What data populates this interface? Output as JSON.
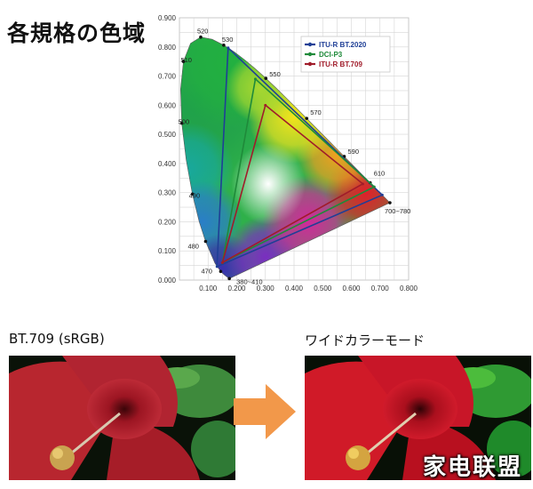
{
  "page": {
    "title": "各規格の色域",
    "left_caption": "BT.709 (sRGB)",
    "right_caption": "ワイドカラーモード",
    "watermark": "家电联盟"
  },
  "chart_data": {
    "type": "scatter",
    "title": "",
    "xlabel": "",
    "ylabel": "",
    "xlim": [
      0.0,
      0.8
    ],
    "ylim": [
      0.0,
      0.9
    ],
    "x_ticks": [
      "0.100",
      "0.200",
      "0.300",
      "0.400",
      "0.500",
      "0.600",
      "0.700",
      "0.800"
    ],
    "y_ticks": [
      "0.000",
      "0.100",
      "0.200",
      "0.300",
      "0.400",
      "0.500",
      "0.600",
      "0.700",
      "0.800",
      "0.900"
    ],
    "grid": true,
    "legend_position": "top-right",
    "spectral_locus": [
      {
        "x": 0.1741,
        "y": 0.005,
        "label": "380~410"
      },
      {
        "x": 0.1566,
        "y": 0.0177
      },
      {
        "x": 0.144,
        "y": 0.0297,
        "label": "470"
      },
      {
        "x": 0.1241,
        "y": 0.0578
      },
      {
        "x": 0.0913,
        "y": 0.1327,
        "label": "480"
      },
      {
        "x": 0.0687,
        "y": 0.2007
      },
      {
        "x": 0.0454,
        "y": 0.295,
        "label": "490"
      },
      {
        "x": 0.0235,
        "y": 0.4127
      },
      {
        "x": 0.0082,
        "y": 0.5384,
        "label": "500"
      },
      {
        "x": 0.0039,
        "y": 0.6548
      },
      {
        "x": 0.0139,
        "y": 0.7502,
        "label": "510"
      },
      {
        "x": 0.0389,
        "y": 0.812
      },
      {
        "x": 0.0743,
        "y": 0.8338,
        "label": "520"
      },
      {
        "x": 0.1142,
        "y": 0.8262
      },
      {
        "x": 0.1547,
        "y": 0.8059,
        "label": "530"
      },
      {
        "x": 0.1929,
        "y": 0.7816
      },
      {
        "x": 0.2296,
        "y": 0.7543
      },
      {
        "x": 0.2658,
        "y": 0.7243
      },
      {
        "x": 0.3016,
        "y": 0.6923,
        "label": "550"
      },
      {
        "x": 0.3373,
        "y": 0.6589
      },
      {
        "x": 0.3731,
        "y": 0.6245
      },
      {
        "x": 0.4087,
        "y": 0.5896
      },
      {
        "x": 0.4441,
        "y": 0.5547,
        "label": "570"
      },
      {
        "x": 0.4788,
        "y": 0.5202
      },
      {
        "x": 0.5125,
        "y": 0.4866
      },
      {
        "x": 0.5448,
        "y": 0.4544
      },
      {
        "x": 0.5752,
        "y": 0.4242,
        "label": "590"
      },
      {
        "x": 0.6029,
        "y": 0.3965
      },
      {
        "x": 0.627,
        "y": 0.3725
      },
      {
        "x": 0.6482,
        "y": 0.3514
      },
      {
        "x": 0.6658,
        "y": 0.334,
        "label": "610"
      },
      {
        "x": 0.6915,
        "y": 0.3083
      },
      {
        "x": 0.7079,
        "y": 0.292
      },
      {
        "x": 0.7347,
        "y": 0.2653,
        "label": "700~780"
      }
    ],
    "series": [
      {
        "name": "ITU-R BT.2020",
        "color": "#1f3f96",
        "points": [
          [
            0.708,
            0.292
          ],
          [
            0.17,
            0.797
          ],
          [
            0.131,
            0.046
          ]
        ]
      },
      {
        "name": "DCI-P3",
        "color": "#1f8a3a",
        "points": [
          [
            0.68,
            0.32
          ],
          [
            0.265,
            0.69
          ],
          [
            0.15,
            0.06
          ]
        ]
      },
      {
        "name": "ITU-R BT.709",
        "color": "#a01c2a",
        "points": [
          [
            0.64,
            0.33
          ],
          [
            0.3,
            0.6
          ],
          [
            0.15,
            0.06
          ]
        ]
      }
    ]
  }
}
